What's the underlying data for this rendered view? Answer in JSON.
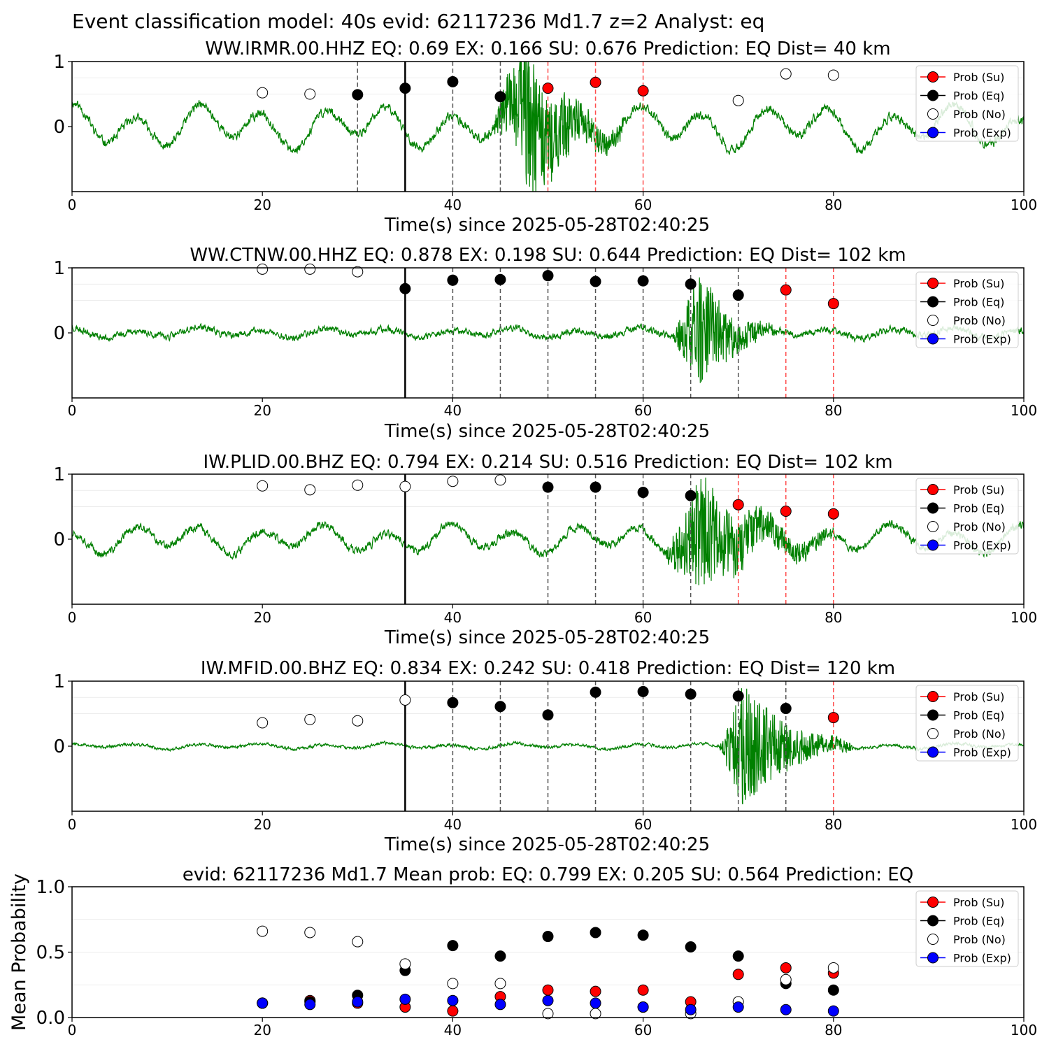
{
  "suptitle": "Event classification model: 40s evid: 62117236 Md1.7 z=2 Analyst: eq",
  "colors": {
    "waveform": "#008000",
    "su": "#ff0000",
    "eq": "#000000",
    "no": "#ffffff",
    "exp": "#0000ff",
    "red_line": "#ff4d4d",
    "dash_line": "#555555"
  },
  "chart_data": [
    {
      "type": "line",
      "title": "WW.IRMR.00.HHZ   EQ: 0.69  EX: 0.166  SU: 0.676   Prediction: EQ    Dist= 40 km",
      "xlabel": "Time(s) since 2025-05-28T02:40:25",
      "xlim": [
        0,
        100
      ],
      "ylim": [
        -1,
        1
      ],
      "xticks": [
        "0",
        "20",
        "40",
        "60",
        "80",
        "100"
      ],
      "yticks": [
        "0",
        "1"
      ],
      "legend": [
        "Prob (Su)",
        "Prob (Eq)",
        "Prob (No)",
        "Prob (Exp)"
      ],
      "legend_position": "top-right",
      "waveform": {
        "noise": 0.12,
        "wave": 0.3,
        "event_start": 44,
        "event_peak": 48,
        "event_end": 58,
        "event_amp": 1.2,
        "seed": 11
      },
      "solid_line": 35,
      "dashed_gray": [
        30,
        40,
        45
      ],
      "dashed_red": [
        50,
        55,
        60
      ],
      "points": [
        {
          "x": 20,
          "y": 0.52,
          "cls": "no"
        },
        {
          "x": 25,
          "y": 0.5,
          "cls": "no"
        },
        {
          "x": 30,
          "y": 0.49,
          "cls": "eq"
        },
        {
          "x": 35,
          "y": 0.59,
          "cls": "eq"
        },
        {
          "x": 40,
          "y": 0.69,
          "cls": "eq"
        },
        {
          "x": 45,
          "y": 0.46,
          "cls": "eq"
        },
        {
          "x": 50,
          "y": 0.59,
          "cls": "su"
        },
        {
          "x": 55,
          "y": 0.68,
          "cls": "su"
        },
        {
          "x": 60,
          "y": 0.55,
          "cls": "su"
        },
        {
          "x": 70,
          "y": 0.4,
          "cls": "no"
        },
        {
          "x": 75,
          "y": 0.81,
          "cls": "no"
        },
        {
          "x": 80,
          "y": 0.79,
          "cls": "no"
        }
      ]
    },
    {
      "type": "line",
      "title": "WW.CTNW.00.HHZ   EQ: 0.878  EX: 0.198  SU: 0.644   Prediction: EQ    Dist= 102 km",
      "xlabel": "Time(s) since 2025-05-28T02:40:25",
      "xlim": [
        0,
        100
      ],
      "ylim": [
        -1,
        1
      ],
      "xticks": [
        "0",
        "20",
        "40",
        "60",
        "80",
        "100"
      ],
      "yticks": [
        "0",
        "1"
      ],
      "legend": [
        "Prob (Su)",
        "Prob (Eq)",
        "Prob (No)",
        "Prob (Exp)"
      ],
      "legend_position": "top-right",
      "waveform": {
        "noise": 0.09,
        "wave": 0.07,
        "event_start": 63,
        "event_peak": 66,
        "event_end": 74,
        "event_amp": 0.95,
        "seed": 23
      },
      "solid_line": 35,
      "dashed_gray": [
        40,
        45,
        50,
        55,
        60,
        65,
        70
      ],
      "dashed_red": [
        75,
        80
      ],
      "points": [
        {
          "x": 20,
          "y": 0.98,
          "cls": "no"
        },
        {
          "x": 25,
          "y": 0.98,
          "cls": "no"
        },
        {
          "x": 30,
          "y": 0.94,
          "cls": "no"
        },
        {
          "x": 35,
          "y": 0.68,
          "cls": "eq"
        },
        {
          "x": 40,
          "y": 0.81,
          "cls": "eq"
        },
        {
          "x": 45,
          "y": 0.82,
          "cls": "eq"
        },
        {
          "x": 50,
          "y": 0.88,
          "cls": "eq"
        },
        {
          "x": 55,
          "y": 0.79,
          "cls": "eq"
        },
        {
          "x": 60,
          "y": 0.8,
          "cls": "eq"
        },
        {
          "x": 65,
          "y": 0.75,
          "cls": "eq"
        },
        {
          "x": 70,
          "y": 0.58,
          "cls": "eq"
        },
        {
          "x": 75,
          "y": 0.66,
          "cls": "su"
        },
        {
          "x": 80,
          "y": 0.45,
          "cls": "su"
        }
      ]
    },
    {
      "type": "line",
      "title": "IW.PLID.00.BHZ   EQ: 0.794  EX: 0.214  SU: 0.516   Prediction: EQ    Dist= 102 km",
      "xlabel": "Time(s) since 2025-05-28T02:40:25",
      "xlim": [
        0,
        100
      ],
      "ylim": [
        -1,
        1
      ],
      "xticks": [
        "0",
        "20",
        "40",
        "60",
        "80",
        "100"
      ],
      "yticks": [
        "0",
        "1"
      ],
      "legend": [
        "Prob (Su)",
        "Prob (Eq)",
        "Prob (No)",
        "Prob (Exp)"
      ],
      "legend_position": "top-right",
      "waveform": {
        "noise": 0.11,
        "wave": 0.2,
        "event_start": 62,
        "event_peak": 66,
        "event_end": 80,
        "event_amp": 0.9,
        "seed": 37
      },
      "solid_line": 35,
      "dashed_gray": [
        50,
        55,
        60,
        65
      ],
      "dashed_red": [
        70,
        75,
        80
      ],
      "points": [
        {
          "x": 20,
          "y": 0.82,
          "cls": "no"
        },
        {
          "x": 25,
          "y": 0.76,
          "cls": "no"
        },
        {
          "x": 30,
          "y": 0.83,
          "cls": "no"
        },
        {
          "x": 35,
          "y": 0.81,
          "cls": "no"
        },
        {
          "x": 40,
          "y": 0.89,
          "cls": "no"
        },
        {
          "x": 45,
          "y": 0.91,
          "cls": "no"
        },
        {
          "x": 50,
          "y": 0.8,
          "cls": "eq"
        },
        {
          "x": 55,
          "y": 0.8,
          "cls": "eq"
        },
        {
          "x": 60,
          "y": 0.72,
          "cls": "eq"
        },
        {
          "x": 65,
          "y": 0.67,
          "cls": "eq"
        },
        {
          "x": 70,
          "y": 0.53,
          "cls": "su"
        },
        {
          "x": 75,
          "y": 0.43,
          "cls": "su"
        },
        {
          "x": 80,
          "y": 0.39,
          "cls": "su"
        }
      ]
    },
    {
      "type": "line",
      "title": "IW.MFID.00.BHZ   EQ: 0.834  EX: 0.242  SU: 0.418   Prediction: EQ    Dist= 120 km",
      "xlabel": "Time(s) since 2025-05-28T02:40:25",
      "xlim": [
        0,
        100
      ],
      "ylim": [
        -1,
        1
      ],
      "xticks": [
        "0",
        "20",
        "40",
        "60",
        "80",
        "100"
      ],
      "yticks": [
        "0",
        "1"
      ],
      "legend": [
        "Prob (Su)",
        "Prob (Eq)",
        "Prob (No)",
        "Prob (Exp)"
      ],
      "legend_position": "top-right",
      "waveform": {
        "noise": 0.04,
        "wave": 0.04,
        "event_start": 68,
        "event_peak": 70.5,
        "event_end": 82,
        "event_amp": 1.0,
        "seed": 53
      },
      "solid_line": 35,
      "dashed_gray": [
        40,
        45,
        50,
        55,
        60,
        65,
        70,
        75
      ],
      "dashed_red": [
        80
      ],
      "points": [
        {
          "x": 20,
          "y": 0.36,
          "cls": "no"
        },
        {
          "x": 25,
          "y": 0.41,
          "cls": "no"
        },
        {
          "x": 30,
          "y": 0.39,
          "cls": "no"
        },
        {
          "x": 35,
          "y": 0.71,
          "cls": "no"
        },
        {
          "x": 40,
          "y": 0.67,
          "cls": "eq"
        },
        {
          "x": 45,
          "y": 0.61,
          "cls": "eq"
        },
        {
          "x": 50,
          "y": 0.48,
          "cls": "eq"
        },
        {
          "x": 55,
          "y": 0.83,
          "cls": "eq"
        },
        {
          "x": 60,
          "y": 0.84,
          "cls": "eq"
        },
        {
          "x": 65,
          "y": 0.8,
          "cls": "eq"
        },
        {
          "x": 70,
          "y": 0.77,
          "cls": "eq"
        },
        {
          "x": 75,
          "y": 0.58,
          "cls": "eq"
        },
        {
          "x": 80,
          "y": 0.44,
          "cls": "su"
        }
      ]
    },
    {
      "type": "scatter",
      "title": "evid: 62117236  Md1.7   Mean prob:   EQ: 0.799  EX: 0.205  SU: 0.564   Prediction: EQ",
      "ylabel": "Mean Probability",
      "xlim": [
        0,
        100
      ],
      "ylim": [
        0,
        1
      ],
      "xticks": [
        "0",
        "20",
        "40",
        "60",
        "80",
        "100"
      ],
      "yticks": [
        "0.0",
        "0.5",
        "1.0"
      ],
      "legend": [
        "Prob (Su)",
        "Prob (Eq)",
        "Prob (No)",
        "Prob (Exp)"
      ],
      "legend_position": "top-right",
      "x": [
        20,
        25,
        30,
        35,
        40,
        45,
        50,
        55,
        60,
        65,
        70,
        75,
        80
      ],
      "series": [
        {
          "name": "Prob (Su)",
          "cls": "su",
          "values": [
            0.11,
            0.13,
            0.11,
            0.08,
            0.05,
            0.16,
            0.21,
            0.2,
            0.21,
            0.12,
            0.33,
            0.38,
            0.34
          ]
        },
        {
          "name": "Prob (Eq)",
          "cls": "eq",
          "values": [
            0.11,
            0.12,
            0.17,
            0.36,
            0.55,
            0.47,
            0.62,
            0.65,
            0.63,
            0.54,
            0.47,
            0.26,
            0.21
          ]
        },
        {
          "name": "Prob (No)",
          "cls": "no",
          "values": [
            0.66,
            0.65,
            0.58,
            0.41,
            0.26,
            0.26,
            0.03,
            0.03,
            0.08,
            0.03,
            0.12,
            0.29,
            0.38
          ]
        },
        {
          "name": "Prob (Exp)",
          "cls": "exp",
          "values": [
            0.11,
            0.1,
            0.12,
            0.14,
            0.13,
            0.1,
            0.13,
            0.11,
            0.08,
            0.06,
            0.08,
            0.06,
            0.05
          ]
        }
      ]
    }
  ]
}
